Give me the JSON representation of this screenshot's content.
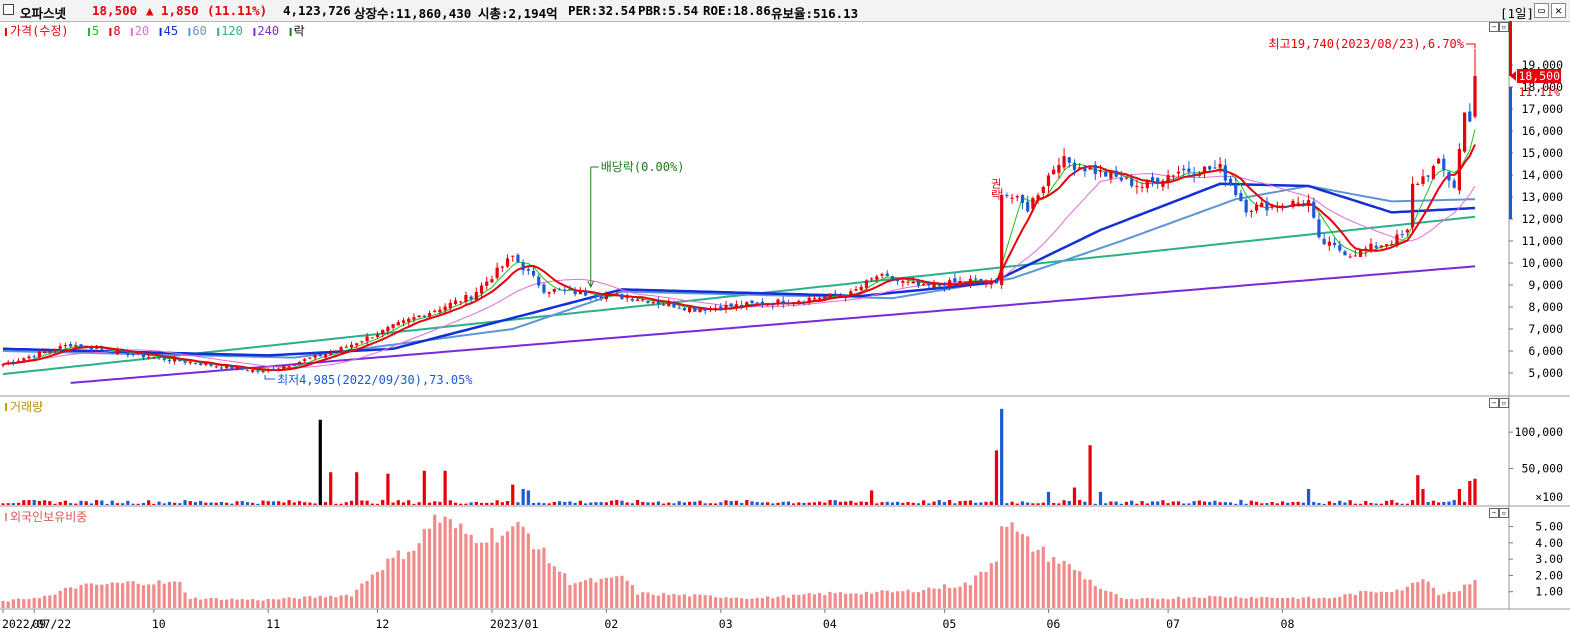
{
  "header": {
    "name": "오파스넷",
    "price": "18,500",
    "change_arrow": "▲",
    "change": "1,850",
    "change_pct": "(11.11%)",
    "volume": "4,123,726",
    "listed_shares": "상장수:11,860,430",
    "market_cap": "시총:2,194억",
    "per": "PER:32.54",
    "pbr": "PBR:5.54",
    "roe": "ROE:18.86",
    "float_ratio": "유보율:516.13",
    "period": "[1일]"
  },
  "colors": {
    "up": "#e8000b",
    "down": "#1a5bd6",
    "ma5": "#19c219",
    "ma8": "#e8000b",
    "ma20": "#e06fd6",
    "ma45": "#1030d8",
    "ma60": "#5b96d6",
    "ma120": "#2ab08a",
    "ma240": "#7a2ad8",
    "ex_div": "#1d7a1d",
    "foreign": "#f08c8c"
  },
  "legend": {
    "price_label": "가격(수정)",
    "ma": [
      "5",
      "8",
      "20",
      "45",
      "60",
      "120",
      "240"
    ],
    "ex": "락"
  },
  "chart_data": [
    {
      "type": "candlestick",
      "title": "",
      "ylim": [
        4000,
        21000
      ],
      "yticks": [
        "5,000",
        "6,000",
        "7,000",
        "8,000",
        "9,000",
        "10,000",
        "11,000",
        "12,000",
        "13,000",
        "14,000",
        "15,000",
        "16,000",
        "17,000",
        "18,000",
        "19,000"
      ],
      "last_price_label": "18,500",
      "last_pct_label": "11.11%",
      "annotations": {
        "high": "최고19,740(2023/08/23),6.70%",
        "low": "최저4,985(2022/09/30),73.05%",
        "ex_dividend": "배당락(0.00%)",
        "ex_marker": "권락"
      },
      "anchors": [
        [
          "2022/07/22",
          5400
        ],
        [
          "2022/08/10",
          6300
        ],
        [
          "2022/09/01",
          5700
        ],
        [
          "2022/09/30",
          5050
        ],
        [
          "2022/10/20",
          6000
        ],
        [
          "2022/11/10",
          7500
        ],
        [
          "2022/11/25",
          8500
        ],
        [
          "2022/12/07",
          10300
        ],
        [
          "2022/12/15",
          8800
        ],
        [
          "2022/12/28",
          8600
        ],
        [
          "2023/01/10",
          8400
        ],
        [
          "2023/01/25",
          7900
        ],
        [
          "2023/02/15",
          8200
        ],
        [
          "2023/03/08",
          8600
        ],
        [
          "2023/03/15",
          9400
        ],
        [
          "2023/03/28",
          8900
        ],
        [
          "2023/04/10",
          9200
        ],
        [
          "2023/04/17",
          9000
        ],
        [
          "2023/04/18",
          13300
        ],
        [
          "2023/04/25",
          12500
        ],
        [
          "2023/05/03",
          14700
        ],
        [
          "2023/05/15",
          14100
        ],
        [
          "2023/05/25",
          13500
        ],
        [
          "2023/06/05",
          14200
        ],
        [
          "2023/06/15",
          14300
        ],
        [
          "2023/06/22",
          12500
        ],
        [
          "2023/07/10",
          12800
        ],
        [
          "2023/07/12",
          11000
        ],
        [
          "2023/07/20",
          10400
        ],
        [
          "2023/08/01",
          11000
        ],
        [
          "2023/08/04",
          11400
        ],
        [
          "2023/08/07",
          13500
        ],
        [
          "2023/08/14",
          14500
        ],
        [
          "2023/08/17",
          13500
        ],
        [
          "2023/08/21",
          16800
        ],
        [
          "2023/08/22",
          16650
        ],
        [
          "2023/08/23",
          18500
        ]
      ],
      "ma_anchors": {
        "ma120": [
          [
            "2022/07/22",
            4950
          ],
          [
            "2023/08/23",
            12100
          ]
        ],
        "ma240": [
          [
            "2022/08/10",
            4550
          ],
          [
            "2023/08/23",
            9850
          ]
        ],
        "ma45": [
          [
            "2022/07/22",
            6100
          ],
          [
            "2022/10/03",
            5800
          ],
          [
            "2022/11/05",
            6100
          ],
          [
            "2022/12/07",
            7500
          ],
          [
            "2023/01/05",
            8800
          ],
          [
            "2023/03/10",
            8500
          ],
          [
            "2023/04/15",
            9100
          ],
          [
            "2023/05/15",
            11500
          ],
          [
            "2023/06/15",
            13600
          ],
          [
            "2023/07/10",
            13500
          ],
          [
            "2023/08/01",
            12300
          ],
          [
            "2023/08/23",
            12500
          ]
        ],
        "ma60": [
          [
            "2022/07/22",
            6000
          ],
          [
            "2022/10/10",
            5700
          ],
          [
            "2022/12/07",
            7000
          ],
          [
            "2023/01/05",
            8700
          ],
          [
            "2023/03/20",
            8400
          ],
          [
            "2023/04/20",
            9300
          ],
          [
            "2023/05/20",
            11000
          ],
          [
            "2023/06/20",
            12900
          ],
          [
            "2023/07/10",
            13500
          ],
          [
            "2023/08/01",
            12800
          ],
          [
            "2023/08/23",
            12900
          ]
        ]
      }
    },
    {
      "type": "bar",
      "title": "거래량",
      "yticks": [
        "100,000",
        "50,000"
      ],
      "unit_label": "×100",
      "peaks": [
        [
          "2022/10/17",
          117000,
          "black"
        ],
        [
          "2022/10/19",
          45000,
          "up"
        ],
        [
          "2022/10/26",
          45000,
          "up"
        ],
        [
          "2022/11/03",
          43000,
          "up"
        ],
        [
          "2022/11/14",
          47000,
          "up"
        ],
        [
          "2022/11/18",
          47000,
          "up"
        ],
        [
          "2022/12/07",
          28000,
          "up"
        ],
        [
          "2022/12/09",
          22000,
          "down"
        ],
        [
          "2022/12/12",
          20000,
          "down"
        ],
        [
          "2023/03/14",
          20000,
          "up"
        ],
        [
          "2023/04/17",
          75000,
          "up"
        ],
        [
          "2023/04/18",
          132000,
          "down"
        ],
        [
          "2023/05/01",
          18000,
          "down"
        ],
        [
          "2023/05/08",
          24000,
          "up"
        ],
        [
          "2023/05/11",
          82000,
          "up"
        ],
        [
          "2023/05/15",
          18000,
          "down"
        ],
        [
          "2023/07/10",
          22000,
          "down"
        ],
        [
          "2023/08/08",
          41000,
          "up"
        ],
        [
          "2023/08/09",
          22000,
          "up"
        ],
        [
          "2023/08/18",
          22000,
          "up"
        ],
        [
          "2023/08/22",
          33000,
          "up"
        ],
        [
          "2023/08/23",
          36000,
          "up"
        ]
      ]
    },
    {
      "type": "bar",
      "title": "외국인보유비중",
      "yticks": [
        "5.00",
        "4.00",
        "3.00",
        "2.00",
        "1.00"
      ],
      "anchors": [
        [
          "2022/07/22",
          0.4
        ],
        [
          "2022/08/05",
          0.8
        ],
        [
          "2022/08/10",
          1.3
        ],
        [
          "2022/08/30",
          1.6
        ],
        [
          "2022/09/08",
          1.5
        ],
        [
          "2022/09/12",
          0.6
        ],
        [
          "2022/10/01",
          0.5
        ],
        [
          "2022/10/25",
          0.8
        ],
        [
          "2022/11/01",
          2.4
        ],
        [
          "2022/11/11",
          4.0
        ],
        [
          "2022/11/16",
          5.6
        ],
        [
          "2022/11/25",
          4.4
        ],
        [
          "2022/12/05",
          4.6
        ],
        [
          "2022/12/09",
          4.9
        ],
        [
          "2022/12/15",
          3.3
        ],
        [
          "2022/12/22",
          1.6
        ],
        [
          "2023/01/03",
          1.7
        ],
        [
          "2023/01/05",
          2.0
        ],
        [
          "2023/01/10",
          0.9
        ],
        [
          "2023/02/10",
          0.6
        ],
        [
          "2023/03/02",
          0.9
        ],
        [
          "2023/03/22",
          1.0
        ],
        [
          "2023/04/10",
          1.5
        ],
        [
          "2023/04/17",
          3.1
        ],
        [
          "2023/04/18",
          5.6
        ],
        [
          "2023/04/24",
          4.2
        ],
        [
          "2023/05/01",
          3.2
        ],
        [
          "2023/05/08",
          2.4
        ],
        [
          "2023/05/15",
          1.2
        ],
        [
          "2023/05/22",
          0.5
        ],
        [
          "2023/06/12",
          0.7
        ],
        [
          "2023/07/15",
          0.6
        ],
        [
          "2023/07/22",
          0.9
        ],
        [
          "2023/08/04",
          1.2
        ],
        [
          "2023/08/09",
          2.0
        ],
        [
          "2023/08/14",
          0.9
        ],
        [
          "2023/08/18",
          1.1
        ],
        [
          "2023/08/23",
          1.9
        ]
      ]
    }
  ],
  "x_labels": [
    "2022/07/22",
    "09",
    "10",
    "11",
    "12",
    "2023/01",
    "02",
    "03",
    "04",
    "05",
    "06",
    "07",
    "08"
  ]
}
